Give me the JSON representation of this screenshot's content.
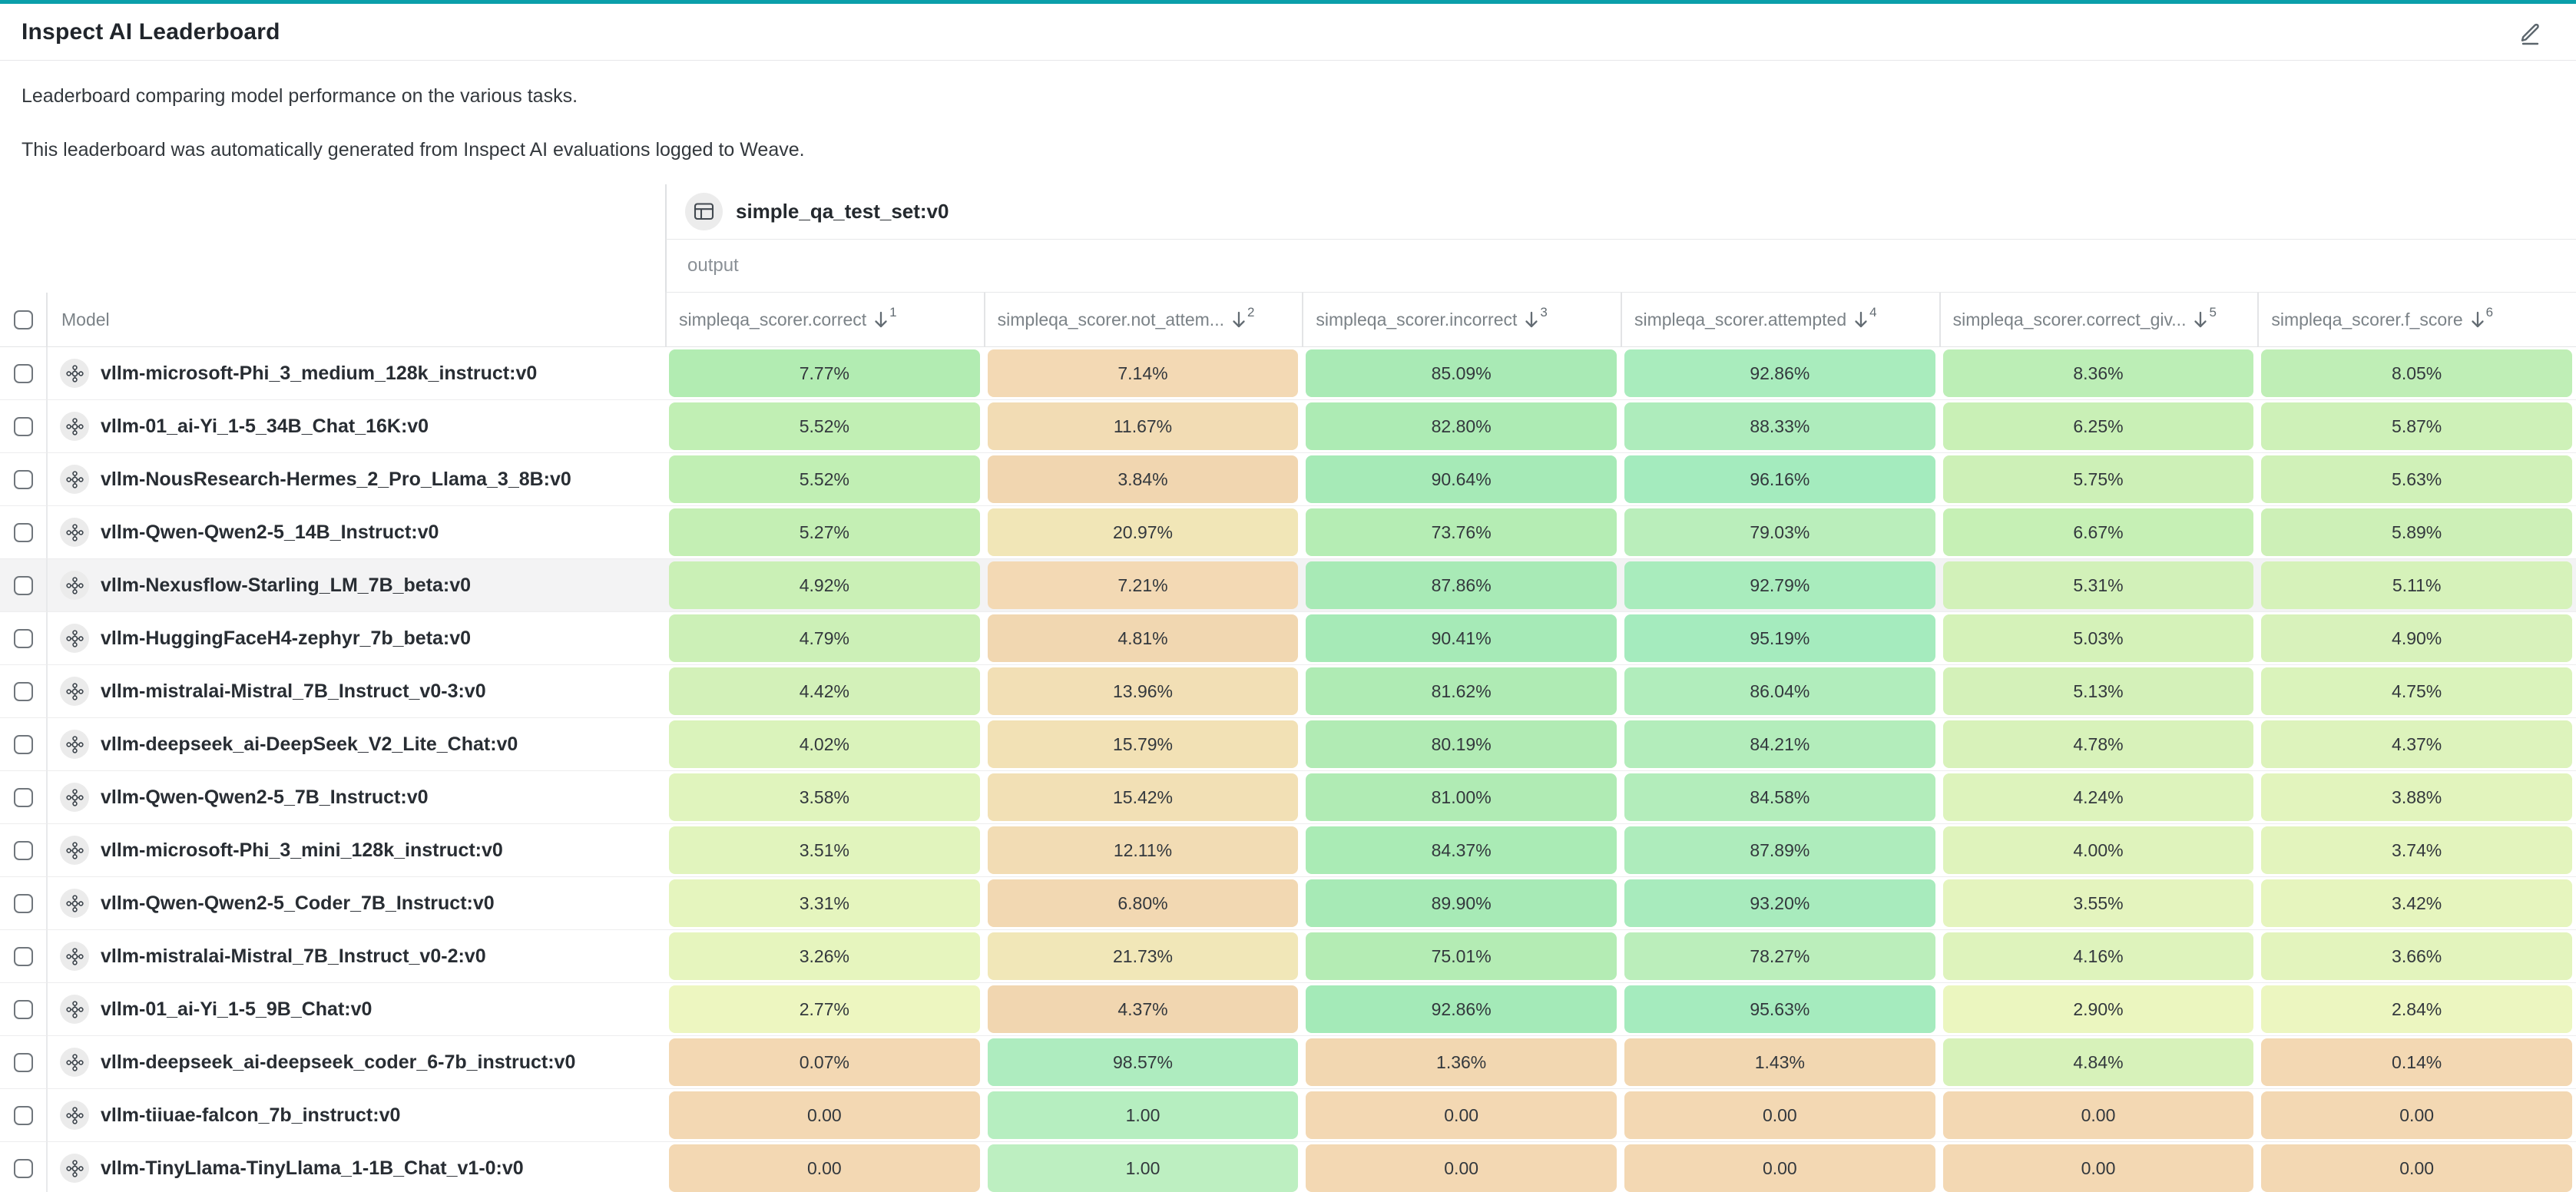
{
  "page": {
    "title": "Inspect AI Leaderboard",
    "description_line1": "Leaderboard comparing model performance on the various tasks.",
    "description_line2": "This leaderboard was automatically generated from Inspect AI evaluations logged to Weave."
  },
  "colors": {
    "accent_teal": "#0a9faa",
    "header_border": "#e6e7e9",
    "row_highlight": "#f3f3f4",
    "icon_gray": "#5c666d"
  },
  "table": {
    "group_header": {
      "dataset_label": "simple_qa_test_set:v0",
      "output_label": "output"
    },
    "model_column_label": "Model",
    "columns": [
      {
        "label": "simpleqa_scorer.correct",
        "sort_order": "1"
      },
      {
        "label": "simpleqa_scorer.not_attem...",
        "sort_order": "2"
      },
      {
        "label": "simpleqa_scorer.incorrect",
        "sort_order": "3"
      },
      {
        "label": "simpleqa_scorer.attempted",
        "sort_order": "4"
      },
      {
        "label": "simpleqa_scorer.correct_giv...",
        "sort_order": "5"
      },
      {
        "label": "simpleqa_scorer.f_score",
        "sort_order": "6"
      }
    ],
    "rows": [
      {
        "model": "vllm-microsoft-Phi_3_medium_128k_instruct:v0",
        "highlighted": false,
        "cells": [
          {
            "v": "7.77%",
            "c": "#b2ecb2"
          },
          {
            "v": "7.14%",
            "c": "#f3d9b4"
          },
          {
            "v": "85.09%",
            "c": "#a9eab5"
          },
          {
            "v": "92.86%",
            "c": "#a9ecbd"
          },
          {
            "v": "8.36%",
            "c": "#bceeb6"
          },
          {
            "v": "8.05%",
            "c": "#bfeeb6"
          }
        ]
      },
      {
        "model": "vllm-01_ai-Yi_1-5_34B_Chat_16K:v0",
        "highlighted": false,
        "cells": [
          {
            "v": "5.52%",
            "c": "#c1efb4"
          },
          {
            "v": "11.67%",
            "c": "#f2dcb4"
          },
          {
            "v": "82.80%",
            "c": "#adebb4"
          },
          {
            "v": "88.33%",
            "c": "#aeecbc"
          },
          {
            "v": "6.25%",
            "c": "#c9f0b6"
          },
          {
            "v": "5.87%",
            "c": "#cef1b8"
          }
        ]
      },
      {
        "model": "vllm-NousResearch-Hermes_2_Pro_Llama_3_8B:v0",
        "highlighted": false,
        "cells": [
          {
            "v": "5.52%",
            "c": "#c1efb4"
          },
          {
            "v": "3.84%",
            "c": "#f1d6b0"
          },
          {
            "v": "90.64%",
            "c": "#a6eab7"
          },
          {
            "v": "96.16%",
            "c": "#a4ebbe"
          },
          {
            "v": "5.75%",
            "c": "#cdf0b7"
          },
          {
            "v": "5.63%",
            "c": "#d0f1b8"
          }
        ]
      },
      {
        "model": "vllm-Qwen-Qwen2-5_14B_Instruct:v0",
        "highlighted": false,
        "cells": [
          {
            "v": "5.27%",
            "c": "#c4efb4"
          },
          {
            "v": "20.97%",
            "c": "#f1e6b7"
          },
          {
            "v": "73.76%",
            "c": "#b5edb4"
          },
          {
            "v": "79.03%",
            "c": "#baeebb"
          },
          {
            "v": "6.67%",
            "c": "#c6f0b5"
          },
          {
            "v": "5.89%",
            "c": "#cdf0b7"
          }
        ]
      },
      {
        "model": "vllm-Nexusflow-Starling_LM_7B_beta:v0",
        "highlighted": true,
        "cells": [
          {
            "v": "4.92%",
            "c": "#caf0b6"
          },
          {
            "v": "7.21%",
            "c": "#f3d9b4"
          },
          {
            "v": "87.86%",
            "c": "#a8eab6"
          },
          {
            "v": "92.79%",
            "c": "#a9ecbd"
          },
          {
            "v": "5.31%",
            "c": "#d2f1b9"
          },
          {
            "v": "5.11%",
            "c": "#d6f2ba"
          }
        ]
      },
      {
        "model": "vllm-HuggingFaceH4-zephyr_7b_beta:v0",
        "highlighted": false,
        "cells": [
          {
            "v": "4.79%",
            "c": "#ccf0b7"
          },
          {
            "v": "4.81%",
            "c": "#f1d7b1"
          },
          {
            "v": "90.41%",
            "c": "#a6eab7"
          },
          {
            "v": "95.19%",
            "c": "#a5ebbe"
          },
          {
            "v": "5.03%",
            "c": "#d5f2b9"
          },
          {
            "v": "4.90%",
            "c": "#d8f2bb"
          }
        ]
      },
      {
        "model": "vllm-mistralai-Mistral_7B_Instruct_v0-3:v0",
        "highlighted": false,
        "cells": [
          {
            "v": "4.42%",
            "c": "#d3f1b9"
          },
          {
            "v": "13.96%",
            "c": "#f2dfb5"
          },
          {
            "v": "81.62%",
            "c": "#afebb4"
          },
          {
            "v": "86.04%",
            "c": "#b1edbc"
          },
          {
            "v": "5.13%",
            "c": "#d4f1b9"
          },
          {
            "v": "4.75%",
            "c": "#daf3bb"
          }
        ]
      },
      {
        "model": "vllm-deepseek_ai-DeepSeek_V2_Lite_Chat:v0",
        "highlighted": false,
        "cells": [
          {
            "v": "4.02%",
            "c": "#daf3bb"
          },
          {
            "v": "15.79%",
            "c": "#f2e1b5"
          },
          {
            "v": "80.19%",
            "c": "#b1ebb4"
          },
          {
            "v": "84.21%",
            "c": "#b3edbb"
          },
          {
            "v": "4.78%",
            "c": "#d8f2ba"
          },
          {
            "v": "4.37%",
            "c": "#ddf3bc"
          }
        ]
      },
      {
        "model": "vllm-Qwen-Qwen2-5_7B_Instruct:v0",
        "highlighted": false,
        "cells": [
          {
            "v": "3.58%",
            "c": "#e0f4bd"
          },
          {
            "v": "15.42%",
            "c": "#f2e0b5"
          },
          {
            "v": "81.00%",
            "c": "#b0ebb4"
          },
          {
            "v": "84.58%",
            "c": "#b3edbb"
          },
          {
            "v": "4.24%",
            "c": "#ddf3bc"
          },
          {
            "v": "3.88%",
            "c": "#e2f4bd"
          }
        ]
      },
      {
        "model": "vllm-microsoft-Phi_3_mini_128k_instruct:v0",
        "highlighted": false,
        "cells": [
          {
            "v": "3.51%",
            "c": "#e1f4bd"
          },
          {
            "v": "12.11%",
            "c": "#f2dcb4"
          },
          {
            "v": "84.37%",
            "c": "#aaebb5"
          },
          {
            "v": "87.89%",
            "c": "#aeecbc"
          },
          {
            "v": "4.00%",
            "c": "#dff3bc"
          },
          {
            "v": "3.74%",
            "c": "#e3f4bd"
          }
        ]
      },
      {
        "model": "vllm-Qwen-Qwen2-5_Coder_7B_Instruct:v0",
        "highlighted": false,
        "cells": [
          {
            "v": "3.31%",
            "c": "#e5f5be"
          },
          {
            "v": "6.80%",
            "c": "#f2d8b2"
          },
          {
            "v": "89.90%",
            "c": "#a7eab6"
          },
          {
            "v": "93.20%",
            "c": "#a8ebbd"
          },
          {
            "v": "3.55%",
            "c": "#e4f4be"
          },
          {
            "v": "3.42%",
            "c": "#e6f5be"
          }
        ]
      },
      {
        "model": "vllm-mistralai-Mistral_7B_Instruct_v0-2:v0",
        "highlighted": false,
        "cells": [
          {
            "v": "3.26%",
            "c": "#e6f5be"
          },
          {
            "v": "21.73%",
            "c": "#f1e7b8"
          },
          {
            "v": "75.01%",
            "c": "#b4ecb4"
          },
          {
            "v": "78.27%",
            "c": "#bbeebb"
          },
          {
            "v": "4.16%",
            "c": "#def3bc"
          },
          {
            "v": "3.66%",
            "c": "#e3f4bd"
          }
        ]
      },
      {
        "model": "vllm-01_ai-Yi_1-5_9B_Chat:v0",
        "highlighted": false,
        "cells": [
          {
            "v": "2.77%",
            "c": "#edf6c0"
          },
          {
            "v": "4.37%",
            "c": "#f1d6b0"
          },
          {
            "v": "92.86%",
            "c": "#a4eab8"
          },
          {
            "v": "95.63%",
            "c": "#a5ebbe"
          },
          {
            "v": "2.90%",
            "c": "#ebf6bf"
          },
          {
            "v": "2.84%",
            "c": "#ecf6c0"
          }
        ]
      },
      {
        "model": "vllm-deepseek_ai-deepseek_coder_6-7b_instruct:v0",
        "highlighted": false,
        "cells": [
          {
            "v": "0.07%",
            "c": "#f3d8b3"
          },
          {
            "v": "98.57%",
            "c": "#aeecbf"
          },
          {
            "v": "1.36%",
            "c": "#f2d7b1"
          },
          {
            "v": "1.43%",
            "c": "#f2d7b1"
          },
          {
            "v": "4.84%",
            "c": "#d7f2ba"
          },
          {
            "v": "0.14%",
            "c": "#f3d8b3"
          }
        ]
      },
      {
        "model": "vllm-tiiuae-falcon_7b_instruct:v0",
        "highlighted": false,
        "cells": [
          {
            "v": "0.00",
            "c": "#f3d8b3"
          },
          {
            "v": "1.00",
            "c": "#b6eec0"
          },
          {
            "v": "0.00",
            "c": "#f3d8b3"
          },
          {
            "v": "0.00",
            "c": "#f3d8b3"
          },
          {
            "v": "0.00",
            "c": "#f3d8b3"
          },
          {
            "v": "0.00",
            "c": "#f3d8b3"
          }
        ]
      },
      {
        "model": "vllm-TinyLlama-TinyLlama_1-1B_Chat_v1-0:v0",
        "highlighted": false,
        "cells": [
          {
            "v": "0.00",
            "c": "#f3d8b3"
          },
          {
            "v": "1.00",
            "c": "#bdefc1"
          },
          {
            "v": "0.00",
            "c": "#f3d8b3"
          },
          {
            "v": "0.00",
            "c": "#f3d8b3"
          },
          {
            "v": "0.00",
            "c": "#f3d8b3"
          },
          {
            "v": "0.00",
            "c": "#f3d8b3"
          }
        ]
      }
    ]
  }
}
